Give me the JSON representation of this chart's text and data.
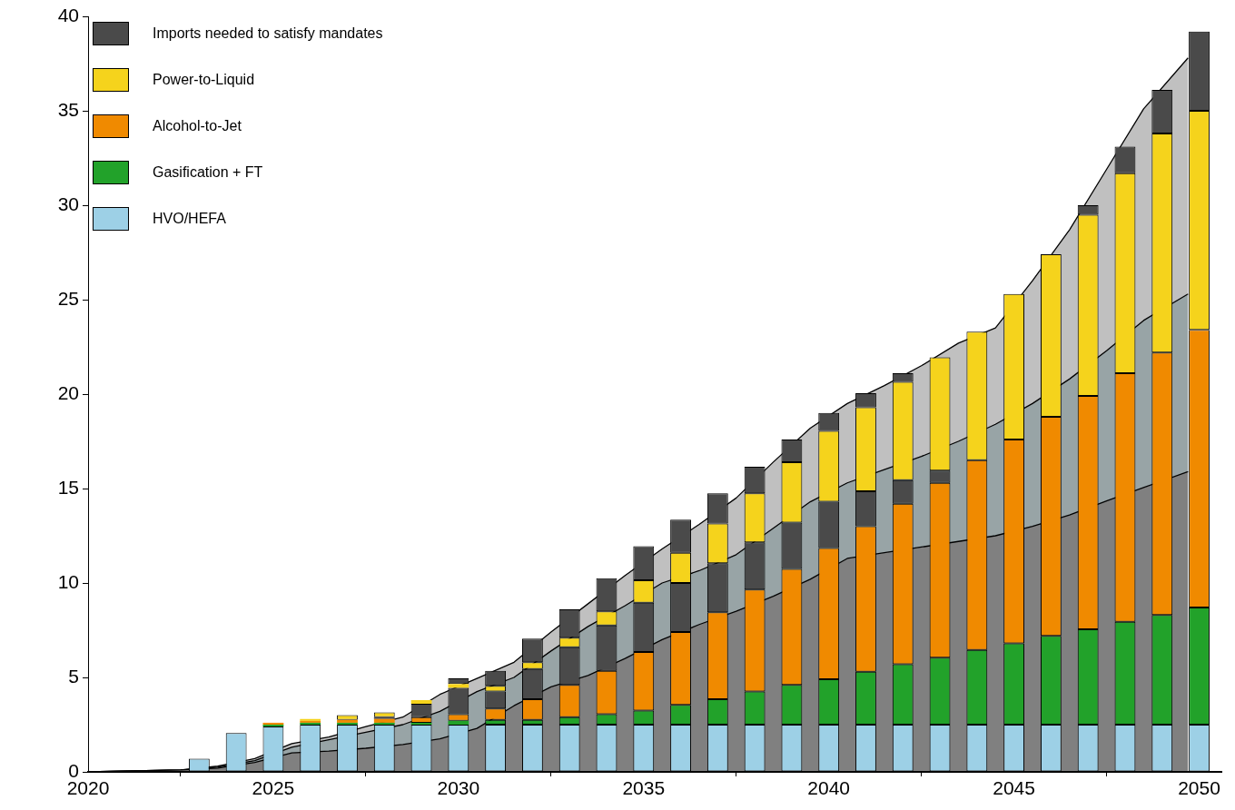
{
  "chart_data": [
    {
      "type": "area",
      "stacked": true,
      "grid": false,
      "x": [
        2020,
        2022.5,
        2023.5,
        2024.5,
        2025.5,
        2026.5,
        2027.5,
        2028.5,
        2029.5,
        2030.5,
        2031.5,
        2032.5,
        2033.5,
        2034.5,
        2035.5,
        2036.5,
        2037.5,
        2038.5,
        2039.5,
        2040.5,
        2041.5,
        2042.5,
        2043.5,
        2044.5,
        2045.5,
        2046.5,
        2047.5,
        2048.5,
        2049.7
      ],
      "xlim": [
        2020,
        2050.6
      ],
      "ylim": [
        0,
        40
      ],
      "series": [
        {
          "color": "#808080",
          "values": [
            0,
            0.1,
            0.2,
            0.5,
            1.0,
            1.1,
            1.25,
            1.45,
            1.75,
            2.3,
            3.5,
            4.5,
            5.1,
            6.0,
            7.0,
            7.8,
            8.5,
            9.3,
            10.2,
            11.3,
            11.6,
            11.9,
            12.2,
            12.5,
            13.0,
            13.6,
            14.35,
            15.05,
            15.9
          ]
        },
        {
          "color": "#98a4a6",
          "values": [
            0,
            0,
            0.05,
            0.1,
            0.3,
            0.6,
            0.85,
            1.05,
            1.45,
            1.95,
            1.5,
            1.9,
            2.6,
            2.8,
            3.0,
            2.85,
            3.0,
            3.6,
            4.1,
            4.0,
            4.4,
            4.8,
            5.3,
            5.9,
            6.5,
            7.2,
            7.95,
            8.85,
            9.4
          ]
        },
        {
          "color": "#c0c0c0",
          "values": [
            0,
            0,
            0.05,
            0.1,
            0.2,
            0.15,
            0.3,
            0.4,
            0.9,
            0.7,
            0.8,
            1.0,
            1.2,
            1.6,
            1.8,
            2.45,
            3.0,
            3.5,
            3.9,
            4.2,
            4.45,
            4.8,
            5.2,
            5.1,
            6.5,
            7.9,
            9.6,
            11.2,
            12.5
          ]
        }
      ]
    },
    {
      "type": "bar",
      "stacked": true,
      "legend": "top left",
      "grid": false,
      "x": [
        2023,
        2024,
        2025,
        2026,
        2027,
        2028,
        2029,
        2030,
        2031,
        2032,
        2033,
        2034,
        2035,
        2036,
        2037,
        2038,
        2039,
        2040,
        2041,
        2042,
        2043,
        2044,
        2045,
        2046,
        2047,
        2048,
        2049,
        2050
      ],
      "xlim": [
        2020,
        2050.6
      ],
      "xticks": [
        2020,
        2025,
        2030,
        2035,
        2040,
        2045,
        2050
      ],
      "ylim": [
        0,
        40
      ],
      "yticks": [
        0,
        5,
        10,
        15,
        20,
        25,
        30,
        35,
        40
      ],
      "series": [
        {
          "name": "HVO/HEFA",
          "color": "#9dd0e6",
          "values": [
            0.7,
            2.05,
            2.4,
            2.5,
            2.5,
            2.5,
            2.5,
            2.5,
            2.5,
            2.5,
            2.5,
            2.5,
            2.5,
            2.5,
            2.5,
            2.5,
            2.5,
            2.5,
            2.5,
            2.5,
            2.5,
            2.5,
            2.5,
            2.5,
            2.5,
            2.5,
            2.5,
            2.5
          ]
        },
        {
          "name": "Gasification + FT",
          "color": "#22a22a",
          "values": [
            0,
            0,
            0.1,
            0.1,
            0.1,
            0.1,
            0.1,
            0.2,
            0.25,
            0.25,
            0.4,
            0.55,
            0.75,
            1.05,
            1.35,
            1.75,
            2.1,
            2.4,
            2.8,
            3.2,
            3.55,
            3.95,
            4.3,
            4.7,
            5.05,
            5.45,
            5.8,
            6.2
          ]
        },
        {
          "name": "Alcohol-to-Jet",
          "color": "#f08a00",
          "values": [
            0,
            0,
            0.1,
            0.1,
            0.15,
            0.2,
            0.3,
            0.35,
            0.6,
            1.1,
            1.7,
            2.3,
            3.1,
            3.85,
            4.6,
            5.4,
            6.15,
            6.95,
            7.7,
            8.5,
            9.25,
            10.05,
            10.8,
            11.6,
            12.35,
            13.15,
            13.9,
            14.7
          ]
        },
        {
          "color": "#4a4a4a",
          "values": [
            0,
            0,
            0,
            0,
            0,
            0.1,
            0.7,
            1.4,
            0.9,
            1.6,
            2.0,
            2.4,
            2.6,
            2.6,
            2.6,
            2.5,
            2.45,
            2.45,
            1.85,
            1.25,
            0.65,
            0,
            0,
            0,
            0,
            0,
            0,
            0
          ]
        },
        {
          "name": "Power-to-Liquid",
          "color": "#f5d31c",
          "values": [
            0,
            0,
            0,
            0.1,
            0.25,
            0.25,
            0.2,
            0.2,
            0.3,
            0.35,
            0.5,
            0.75,
            1.2,
            1.6,
            2.1,
            2.6,
            3.2,
            3.75,
            4.45,
            5.2,
            6.0,
            6.8,
            7.7,
            8.6,
            9.6,
            10.6,
            11.6,
            11.6
          ]
        },
        {
          "name": "Imports needed to satisfy mandates",
          "color": "#4a4a4a",
          "values": [
            0,
            0,
            0,
            0,
            0,
            0,
            0,
            0.3,
            0.8,
            1.25,
            1.5,
            1.75,
            1.8,
            1.75,
            1.6,
            1.4,
            1.2,
            0.95,
            0.75,
            0.45,
            0,
            0,
            0,
            0,
            0.5,
            1.4,
            2.3,
            4.2
          ]
        }
      ]
    }
  ]
}
